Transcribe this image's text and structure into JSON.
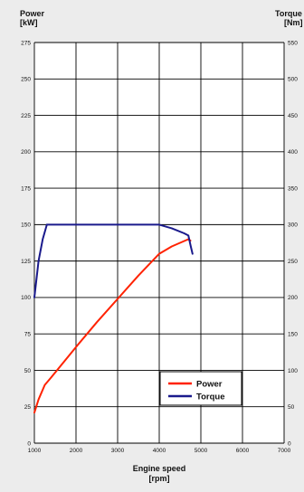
{
  "chart_data": {
    "type": "line",
    "title": "",
    "y_left_label": [
      "Power",
      "[kW]"
    ],
    "y_right_label": [
      "Torque",
      "[Nm]"
    ],
    "x_label": [
      "Engine speed",
      "[rpm]"
    ],
    "xlim": [
      1000,
      7000
    ],
    "x_ticks": [
      1000,
      2000,
      3000,
      4000,
      5000,
      6000,
      7000
    ],
    "y_left_lim": [
      0,
      275
    ],
    "y_left_ticks": [
      0,
      25,
      50,
      75,
      100,
      125,
      150,
      175,
      200,
      225,
      250,
      275
    ],
    "y_right_lim": [
      0,
      550
    ],
    "y_right_ticks": [
      0,
      50,
      100,
      150,
      200,
      250,
      300,
      350,
      400,
      450,
      500,
      550
    ],
    "grid": true,
    "legend_position": "bottom-right",
    "series": [
      {
        "name": "Power",
        "axis": "left",
        "color": "#ff2200",
        "x": [
          1000,
          1100,
          1250,
          1400,
          1600,
          2000,
          2500,
          3000,
          3500,
          4000,
          4300,
          4700,
          4750
        ],
        "y": [
          21,
          30,
          40,
          45,
          52,
          66,
          83,
          99,
          115,
          130,
          135,
          140,
          139
        ]
      },
      {
        "name": "Torque",
        "axis": "right",
        "color": "#1a1a8c",
        "x": [
          1000,
          1100,
          1200,
          1300,
          1500,
          2000,
          3000,
          4000,
          4300,
          4600,
          4700,
          4750,
          4800
        ],
        "y": [
          200,
          250,
          280,
          300,
          300,
          300,
          300,
          300,
          295,
          288,
          285,
          272,
          260
        ]
      }
    ]
  }
}
